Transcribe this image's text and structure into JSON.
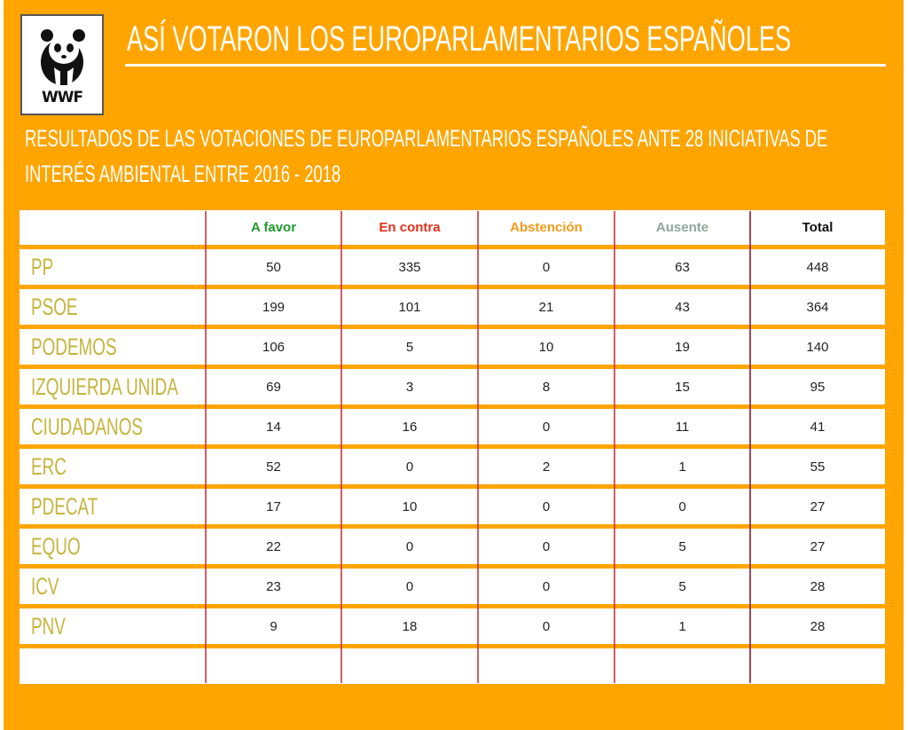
{
  "logo": {
    "text": "WWF"
  },
  "title": "ASÍ VOTARON LOS EUROPARLAMENTARIOS ESPAÑOLES",
  "subtitle": [
    "RESULTADOS DE LAS VOTACIONES DE EUROPARLAMENTARIOS ESPAÑOLES ANTE 28 INICIATIVAS DE",
    "INTERÉS AMBIENTAL ENTRE 2016 - 2018"
  ],
  "table": {
    "headers": [
      {
        "label": "A favor",
        "color": "#1E9A2E"
      },
      {
        "label": "En contra",
        "color": "#E0301E"
      },
      {
        "label": "Abstención",
        "color": "#F39A1A"
      },
      {
        "label": "Ausente",
        "color": "#8FA89A"
      },
      {
        "label": "Total",
        "color": "#111111"
      }
    ],
    "rows": [
      {
        "party": "PP",
        "values": [
          "50",
          "335",
          "0",
          "63",
          "448"
        ]
      },
      {
        "party": "PSOE",
        "values": [
          "199",
          "101",
          "21",
          "43",
          "364"
        ]
      },
      {
        "party": "PODEMOS",
        "values": [
          "106",
          "5",
          "10",
          "19",
          "140"
        ]
      },
      {
        "party": "IZQUIERDA UNIDA",
        "values": [
          "69",
          "3",
          "8",
          "15",
          "95"
        ]
      },
      {
        "party": "CIUDADANOS",
        "values": [
          "14",
          "16",
          "0",
          "11",
          "41"
        ]
      },
      {
        "party": "ERC",
        "values": [
          "52",
          "0",
          "2",
          "1",
          "55"
        ]
      },
      {
        "party": "PDECAT",
        "values": [
          "17",
          "10",
          "0",
          "0",
          "27"
        ]
      },
      {
        "party": "EQUO",
        "values": [
          "22",
          "0",
          "0",
          "5",
          "27"
        ]
      },
      {
        "party": "ICV",
        "values": [
          "23",
          "0",
          "0",
          "5",
          "28"
        ]
      },
      {
        "party": "PNV",
        "values": [
          "9",
          "18",
          "0",
          "1",
          "28"
        ]
      }
    ]
  }
}
